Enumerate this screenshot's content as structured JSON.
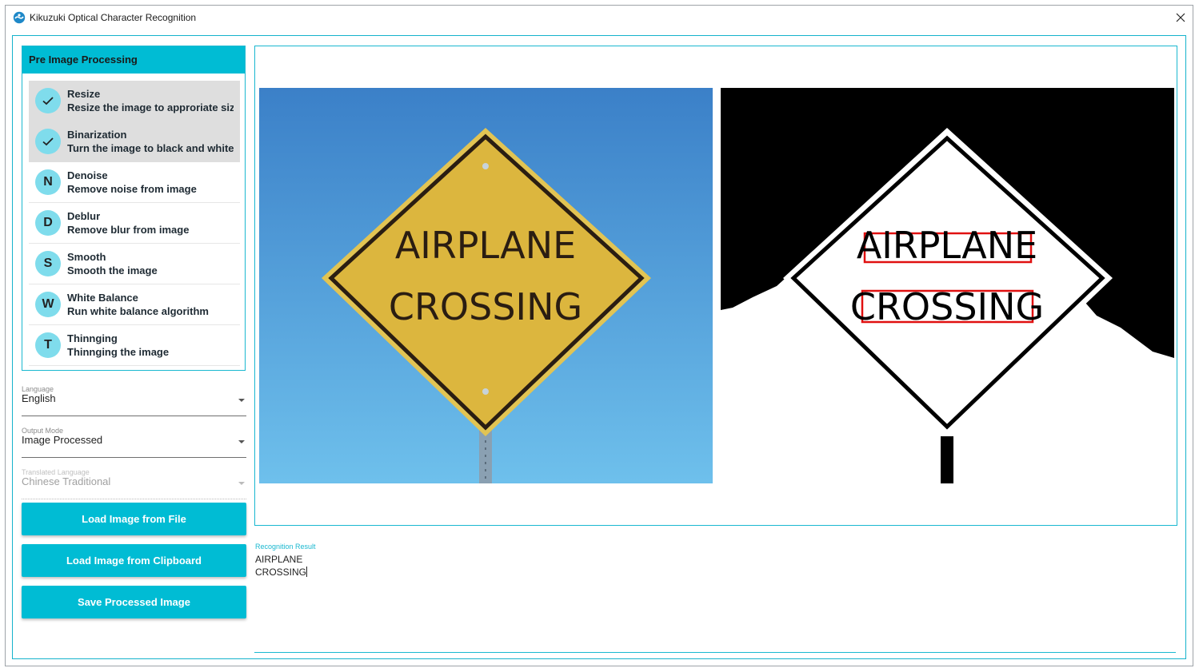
{
  "window": {
    "title": "Kikuzuki Optical Character Recognition",
    "icon": "kikuzuki-logo-icon",
    "close_icon": "close-icon"
  },
  "preprocessing": {
    "header": "Pre Image Processing",
    "steps": [
      {
        "avatar": "",
        "icon": "check-icon",
        "title": "Resize",
        "description": "Resize the image to approriate size",
        "selected": true
      },
      {
        "avatar": "",
        "icon": "check-icon",
        "title": "Binarization",
        "description": "Turn the image to black and white",
        "selected": true
      },
      {
        "avatar": "N",
        "title": "Denoise",
        "description": "Remove noise from image",
        "selected": false
      },
      {
        "avatar": "D",
        "title": "Deblur",
        "description": "Remove blur from image",
        "selected": false
      },
      {
        "avatar": "S",
        "title": "Smooth",
        "description": "Smooth the image",
        "selected": false
      },
      {
        "avatar": "W",
        "title": "White Balance",
        "description": "Run white balance algorithm",
        "selected": false
      },
      {
        "avatar": "T",
        "title": "Thinnging",
        "description": "Thinnging the image",
        "selected": false
      }
    ]
  },
  "language": {
    "label": "Language",
    "value": "English"
  },
  "output_mode": {
    "label": "Output Mode",
    "value": "Image Processed"
  },
  "translated_language": {
    "label": "Translated Language",
    "value": "Chinese Traditional",
    "disabled": true
  },
  "buttons": {
    "load_file": "Load Image from File",
    "load_clipboard": "Load Image from Clipboard",
    "save_processed": "Save Processed Image"
  },
  "images": {
    "original_sign": [
      "AIRPLANE",
      "CROSSING"
    ],
    "processed_sign": [
      "AIRPLANE",
      "CROSSING"
    ],
    "colors": {
      "sky_top": "#3b80c8",
      "sky_bottom": "#6ec0ec",
      "sign_yellow": "#e0bd42",
      "box_red": "#e01010",
      "accent": "#00bcd4"
    }
  },
  "result": {
    "label": "Recognition Result",
    "lines": [
      "AIRPLANE",
      "CROSSING"
    ]
  }
}
